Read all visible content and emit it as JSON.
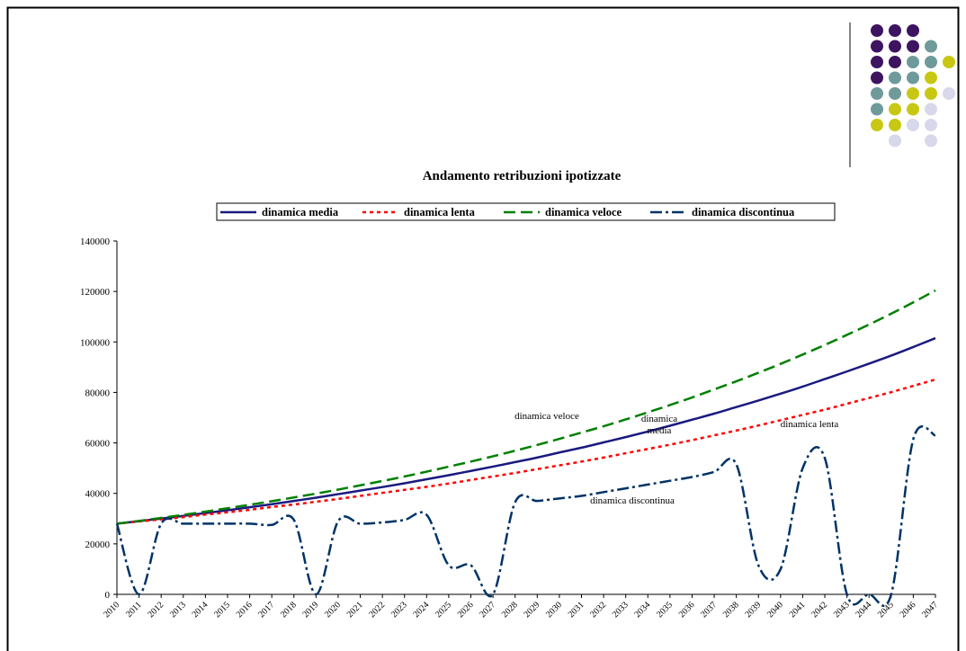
{
  "chart_data": {
    "type": "line",
    "title": "Andamento retribuzioni ipotizzate",
    "categories": [
      "2010",
      "2011",
      "2012",
      "2013",
      "2014",
      "2015",
      "2016",
      "2017",
      "2018",
      "2019",
      "2020",
      "2021",
      "2022",
      "2023",
      "2024",
      "2025",
      "2026",
      "2027",
      "2028",
      "2029",
      "2030",
      "2031",
      "2032",
      "2033",
      "2034",
      "2035",
      "2036",
      "2037",
      "2038",
      "2039",
      "2040",
      "2041",
      "2042",
      "2043",
      "2044",
      "2045",
      "2046",
      "2047"
    ],
    "series": [
      {
        "name": "dinamica media",
        "color": "#1a1a80",
        "values": [
          28000,
          29000,
          30000,
          31100,
          32200,
          33300,
          34500,
          35700,
          37000,
          38300,
          39700,
          41100,
          42500,
          44000,
          45600,
          47200,
          48900,
          50600,
          52400,
          54200,
          56200,
          58100,
          60200,
          62300,
          64500,
          66800,
          69200,
          71600,
          74200,
          76800,
          79500,
          82300,
          85300,
          88300,
          91400,
          94600,
          98000,
          101500
        ]
      },
      {
        "name": "dinamica lenta",
        "color": "#ff0000",
        "values": [
          28000,
          28900,
          29700,
          30600,
          31600,
          32500,
          33500,
          34600,
          35600,
          36700,
          37800,
          39000,
          40200,
          41400,
          42600,
          43900,
          45300,
          46700,
          48100,
          49600,
          51100,
          52600,
          54200,
          55900,
          57600,
          59300,
          61100,
          63000,
          64900,
          66900,
          69000,
          71100,
          73200,
          75500,
          77800,
          80100,
          82600,
          85100
        ]
      },
      {
        "name": "dinamica veloce",
        "color": "#008000",
        "values": [
          28000,
          29100,
          30300,
          31500,
          32800,
          34100,
          35500,
          36900,
          38400,
          39900,
          41500,
          43200,
          44900,
          46700,
          48600,
          50600,
          52600,
          54700,
          56900,
          59200,
          61600,
          64100,
          66600,
          69300,
          72100,
          75000,
          78000,
          81200,
          84400,
          87800,
          91300,
          95000,
          98800,
          102800,
          106900,
          111200,
          115700,
          120400
        ]
      },
      {
        "name": "dinamica discontinua",
        "color": "#003366",
        "values": [
          28000,
          0,
          28000,
          28000,
          28000,
          28000,
          28000,
          27500,
          29500,
          0,
          29000,
          28000,
          28500,
          29500,
          31500,
          11500,
          11500,
          0,
          36500,
          37000,
          38000,
          39000,
          40500,
          42000,
          43500,
          45000,
          46500,
          48500,
          51500,
          11500,
          10000,
          50000,
          54000,
          0,
          0,
          0,
          61500,
          63000
        ]
      }
    ],
    "annotations": [
      "dinamica veloce",
      "dinamica",
      "media",
      "dinamica lenta",
      "dinamica discontinua"
    ],
    "ylim": [
      0,
      140000
    ],
    "yticks": [
      0,
      20000,
      40000,
      60000,
      80000,
      100000,
      120000,
      140000
    ],
    "grid": false,
    "smooth": true
  }
}
